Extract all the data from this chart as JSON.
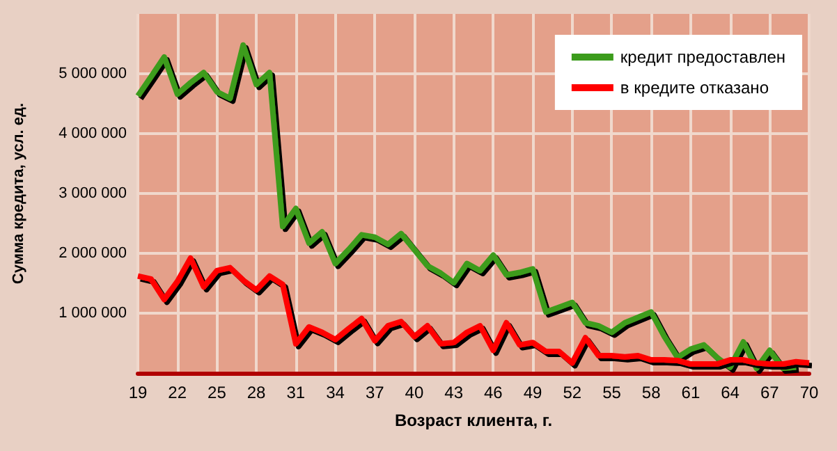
{
  "chart_data": {
    "type": "line",
    "xlabel": "Возраст клиента, г.",
    "ylabel": "Сумма кредита, усл. ед.",
    "x": [
      19,
      20,
      21,
      22,
      23,
      24,
      25,
      26,
      27,
      28,
      29,
      30,
      31,
      32,
      33,
      34,
      35,
      36,
      37,
      38,
      39,
      40,
      41,
      42,
      43,
      44,
      45,
      46,
      47,
      48,
      49,
      50,
      51,
      52,
      53,
      54,
      55,
      56,
      57,
      58,
      59,
      60,
      61,
      62,
      63,
      64,
      65,
      66,
      67,
      68,
      69,
      70
    ],
    "series": [
      {
        "name": "кредит предоставлен",
        "color": "#3c9c1c",
        "values": [
          4630000,
          4950000,
          5280000,
          4660000,
          4850000,
          5020000,
          4700000,
          4590000,
          5480000,
          4820000,
          5020000,
          2450000,
          2750000,
          2170000,
          2360000,
          1830000,
          2060000,
          2310000,
          2270000,
          2150000,
          2330000,
          2060000,
          1790000,
          1670000,
          1510000,
          1830000,
          1710000,
          1970000,
          1640000,
          1680000,
          1740000,
          1020000,
          1100000,
          1180000,
          840000,
          790000,
          680000,
          840000,
          930000,
          1020000,
          610000,
          260000,
          400000,
          470000,
          260000,
          100000,
          520000,
          80000,
          380000,
          80000,
          100000,
          null
        ]
      },
      {
        "name": "в кредите отказано",
        "color": "#ff0000",
        "values": [
          1620000,
          1570000,
          1230000,
          1530000,
          1920000,
          1440000,
          1710000,
          1760000,
          1550000,
          1390000,
          1620000,
          1480000,
          490000,
          770000,
          680000,
          560000,
          740000,
          910000,
          540000,
          790000,
          860000,
          610000,
          790000,
          490000,
          510000,
          680000,
          790000,
          380000,
          840000,
          470000,
          510000,
          360000,
          360000,
          170000,
          590000,
          290000,
          290000,
          270000,
          290000,
          220000,
          220000,
          210000,
          150000,
          150000,
          150000,
          220000,
          220000,
          170000,
          150000,
          150000,
          190000,
          170000
        ]
      }
    ],
    "xlim": [
      19,
      70
    ],
    "xticks": [
      19,
      22,
      25,
      28,
      31,
      34,
      37,
      40,
      43,
      46,
      49,
      52,
      55,
      58,
      61,
      64,
      67,
      70
    ],
    "ylim": [
      0,
      6000000
    ],
    "yticks": [
      {
        "value": 1000000,
        "label": "1 000 000"
      },
      {
        "value": 2000000,
        "label": "2 000 000"
      },
      {
        "value": 3000000,
        "label": "3 000 000"
      },
      {
        "value": 4000000,
        "label": "4 000 000"
      },
      {
        "value": 5000000,
        "label": "5 000 000"
      }
    ],
    "grid": true,
    "legend": "top right",
    "marker": "none",
    "line_style": "solid"
  }
}
